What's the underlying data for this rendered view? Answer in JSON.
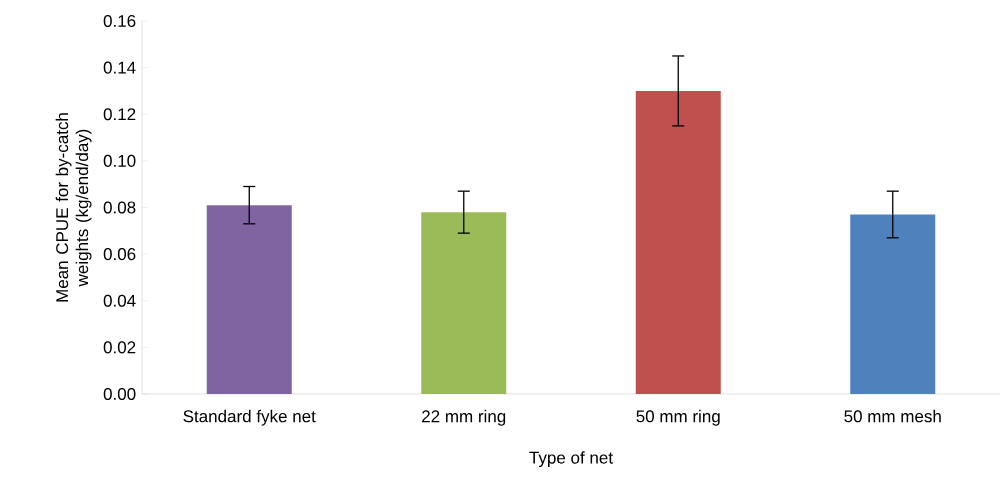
{
  "chart_data": {
    "type": "bar",
    "xlabel": "Type of net",
    "ylabel": "Mean CPUE for by-catch weights (kg/end/day)",
    "categories": [
      "Standard fyke net",
      "22 mm ring",
      "50 mm ring",
      "50 mm mesh"
    ],
    "values": [
      0.081,
      0.078,
      0.13,
      0.077
    ],
    "errors": [
      0.008,
      0.009,
      0.015,
      0.01
    ],
    "colors": [
      "#8064a2",
      "#9bbb59",
      "#c0504d",
      "#4f81bd"
    ],
    "ylim": [
      0,
      0.16
    ],
    "yticks": [
      {
        "value": 0,
        "label": "0.00"
      },
      {
        "value": 0.02,
        "label": "0.02"
      },
      {
        "value": 0.04,
        "label": "0.04"
      },
      {
        "value": 0.06,
        "label": "0.06"
      },
      {
        "value": 0.08,
        "label": "0.08"
      },
      {
        "value": 0.1,
        "label": "0.10"
      },
      {
        "value": 0.12,
        "label": "0.12"
      },
      {
        "value": 0.14,
        "label": "0.14"
      },
      {
        "value": 0.16,
        "label": "0.16"
      }
    ]
  }
}
